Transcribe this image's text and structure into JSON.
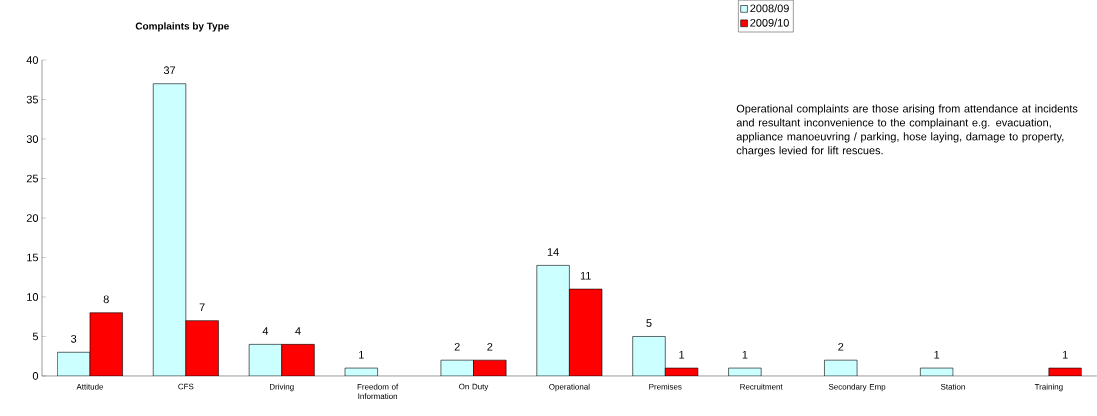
{
  "chart_data": {
    "type": "bar",
    "title": "Complaints by Type",
    "categories": [
      "Attitude",
      "CFS",
      "Driving",
      "Freedom of Information",
      "On Duty",
      "Operational",
      "Premises",
      "Recruitment",
      "Secondary Emp",
      "Station",
      "Training"
    ],
    "series": [
      {
        "name": "2008/09",
        "color": "#ccffff",
        "values": [
          3,
          37,
          4,
          1,
          2,
          14,
          5,
          1,
          2,
          1,
          null
        ]
      },
      {
        "name": "2009/10",
        "color": "#ff0000",
        "values": [
          8,
          7,
          4,
          null,
          2,
          11,
          1,
          null,
          null,
          null,
          1
        ]
      }
    ],
    "ylim": [
      0,
      40
    ],
    "yticks": [
      0,
      5,
      10,
      15,
      20,
      25,
      30,
      35,
      40
    ],
    "grid": false,
    "legend": "top right",
    "data_labels": true,
    "annotations": [
      "Operational complaints are those arising from attendance at incidents and resultant inconvenience to the complainant e.g. evacuation, appliance manoeuvring / parking, hose laying, damage to property, charges levied for lift rescues."
    ]
  }
}
